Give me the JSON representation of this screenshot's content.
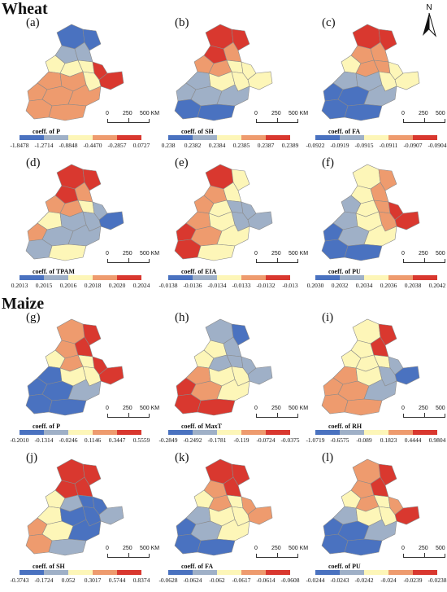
{
  "sections": [
    {
      "title": "Wheat"
    },
    {
      "title": "Maize"
    }
  ],
  "north_label": "N",
  "scale": {
    "zero": "0",
    "mid": "250",
    "end": "500 KM"
  },
  "colors": {
    "blue": "#4a72c0",
    "light_blue": "#9fb0c7",
    "cream": "#fdf6b8",
    "orange": "#ee9b6e",
    "red": "#d9382f"
  },
  "panels": [
    {
      "letter": "(a)",
      "legend_title": "coeff. of P",
      "labels": [
        "-1.8478",
        "-1.2714",
        "-0.8848",
        "-0.4470",
        "-0.2857",
        "0.0727"
      ],
      "pattern": "a"
    },
    {
      "letter": "(b)",
      "legend_title": "coeff. of SH",
      "labels": [
        "0.238",
        "0.2382",
        "0.2384",
        "0.2385",
        "0.2387",
        "0.2389"
      ],
      "pattern": "b"
    },
    {
      "letter": "(c)",
      "legend_title": "coeff. of FA",
      "labels": [
        "-0.0922",
        "-0.0919",
        "-0.0915",
        "-0.0911",
        "-0.0907",
        "-0.0904"
      ],
      "pattern": "c"
    },
    {
      "letter": "(d)",
      "legend_title": "coeff. of TPAM",
      "labels": [
        "0.2013",
        "0.2015",
        "0.2016",
        "0.2018",
        "0.2020",
        "0.2024"
      ],
      "pattern": "d"
    },
    {
      "letter": "(e)",
      "legend_title": "coeff. of EIA",
      "labels": [
        "-0.0138",
        "-0.0136",
        "-0.0134",
        "-0.0133",
        "-0.0132",
        "-0.013"
      ],
      "pattern": "e"
    },
    {
      "letter": "(f)",
      "legend_title": "coeff. of PU",
      "labels": [
        "0.2030",
        "0.2032",
        "0.2034",
        "0.2036",
        "0.2038",
        "0.2042"
      ],
      "pattern": "f"
    },
    {
      "letter": "(g)",
      "legend_title": "coeff. of P",
      "labels": [
        "-0.2010",
        "-0.1314",
        "-0.0246",
        "0.1146",
        "0.3447",
        "0.5559"
      ],
      "pattern": "g"
    },
    {
      "letter": "(h)",
      "legend_title": "coeff. of MaxT",
      "labels": [
        "-0.2849",
        "-0.2492",
        "-0.1781",
        "-0.119",
        "-0.0724",
        "-0.0375"
      ],
      "pattern": "h"
    },
    {
      "letter": "(i)",
      "legend_title": "coeff. of RH",
      "labels": [
        "-1.0719",
        "-0.6575",
        "-0.089",
        "0.1823",
        "0.4444",
        "0.9804"
      ],
      "pattern": "i"
    },
    {
      "letter": "(j)",
      "legend_title": "coeff. of SH",
      "labels": [
        "-0.3743",
        "-0.1724",
        "0.052",
        "0.3017",
        "0.5744",
        "0.8374"
      ],
      "pattern": "j"
    },
    {
      "letter": "(k)",
      "legend_title": "coeff. of FA",
      "labels": [
        "-0.0628",
        "-0.0624",
        "-0.062",
        "-0.0617",
        "-0.0614",
        "-0.0608"
      ],
      "pattern": "k"
    },
    {
      "letter": "(l)",
      "legend_title": "coeff. of PU",
      "labels": [
        "-0.0244",
        "-0.0243",
        "-0.0242",
        "-0.024",
        "-0.0239",
        "-0.0238"
      ],
      "pattern": "l"
    }
  ]
}
